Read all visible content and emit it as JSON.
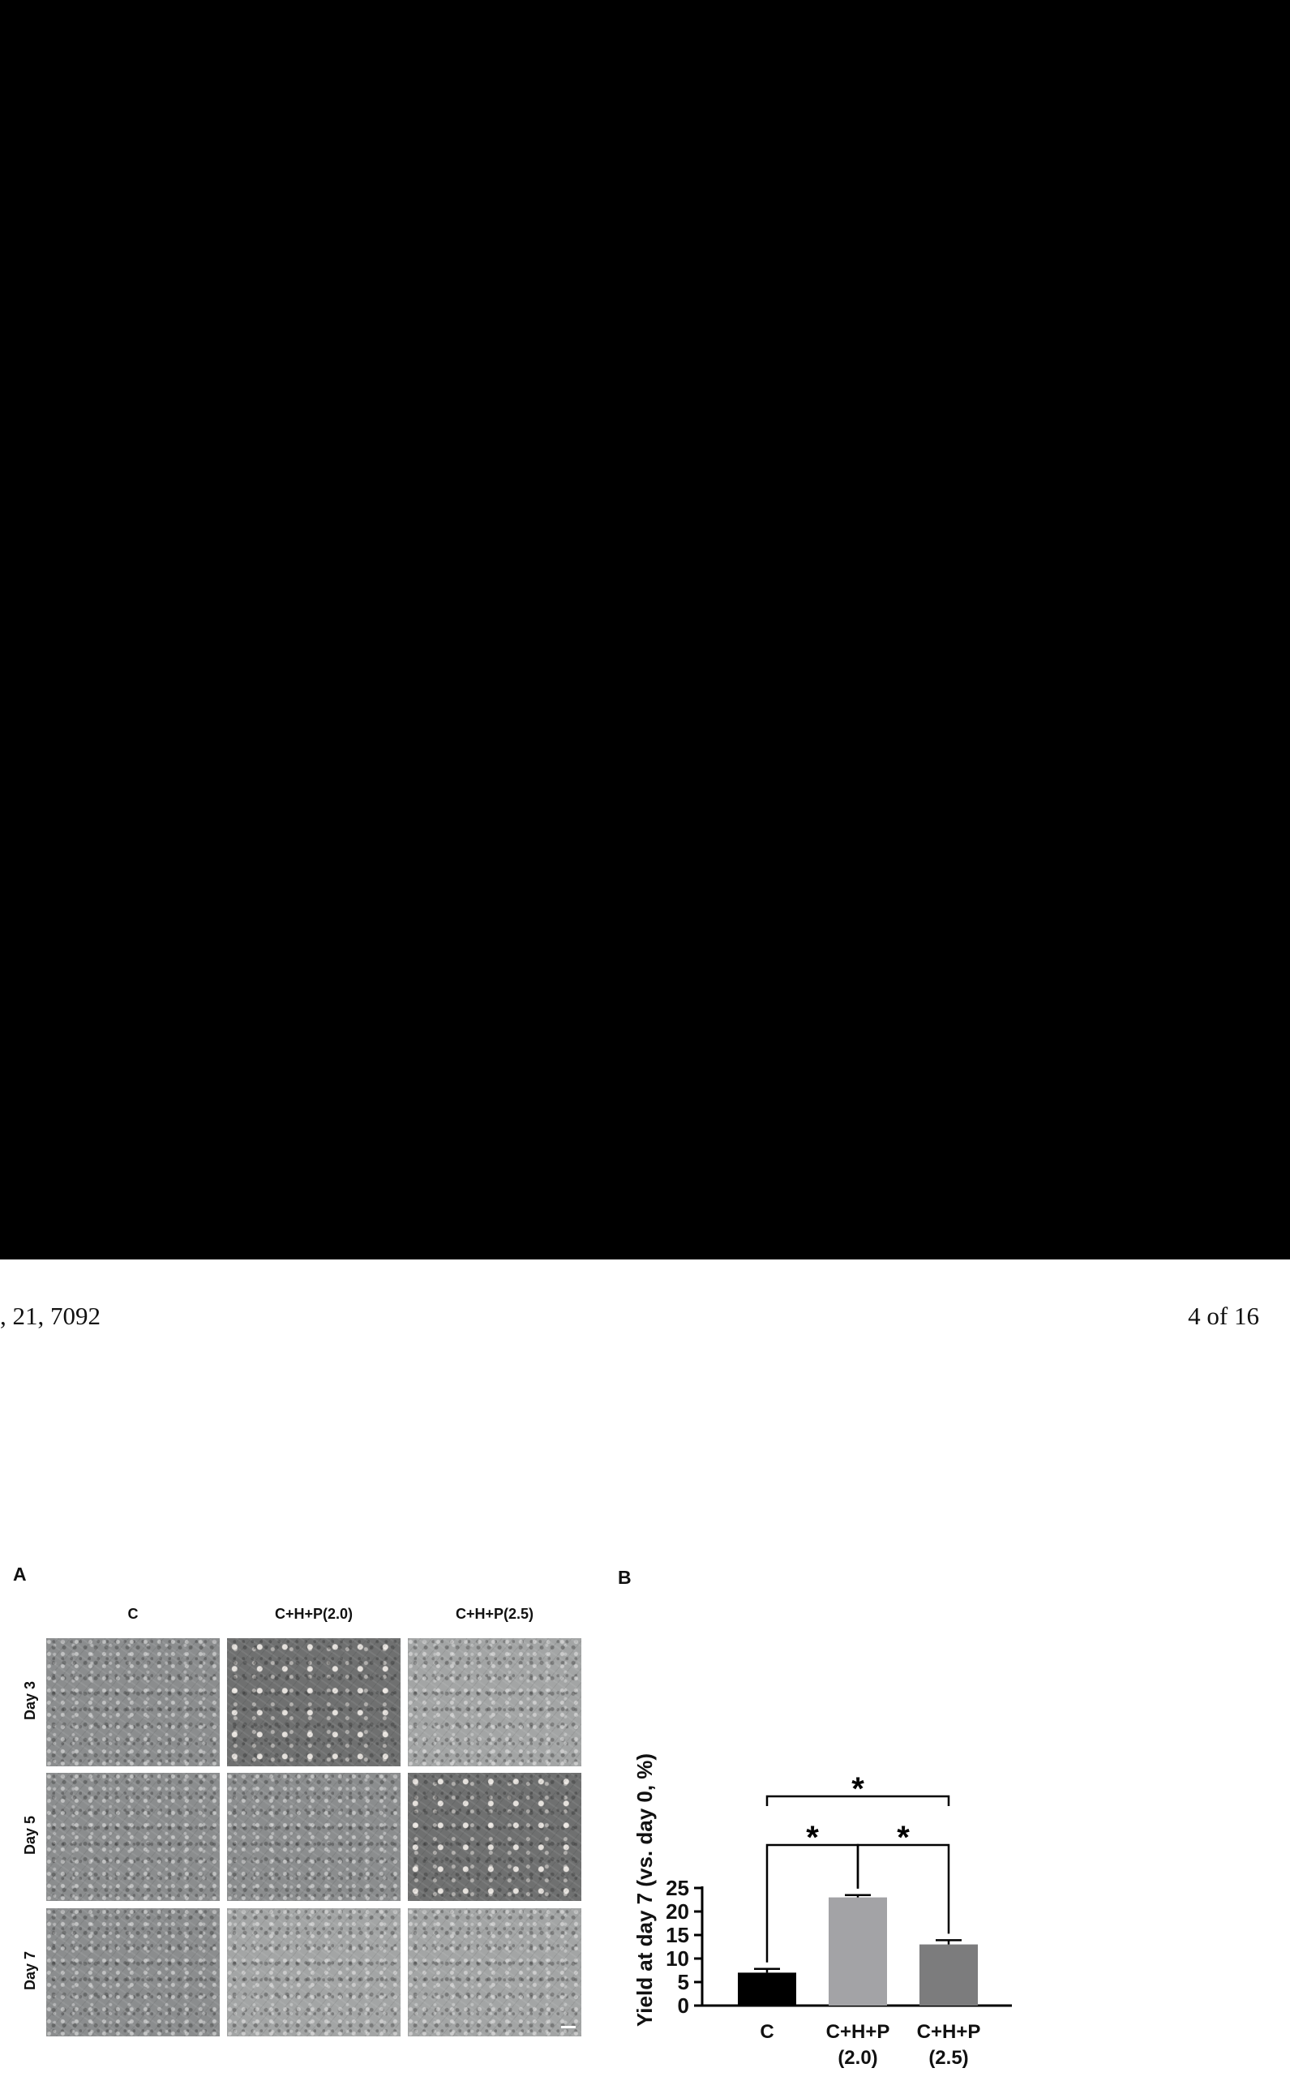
{
  "page": {
    "header_left": ", 21, 7092",
    "header_right": "4 of 16"
  },
  "panel_a": {
    "letter": "A",
    "columns": [
      "C",
      "C+H+P(2.0)",
      "C+H+P(2.5)"
    ],
    "rows": [
      "Day 3",
      "Day 5",
      "Day 7"
    ]
  },
  "panel_b": {
    "letter": "B"
  },
  "chart_data": {
    "type": "bar",
    "categories": [
      "C",
      "C+H+P (2.0)",
      "C+H+P (2.5)"
    ],
    "category_lines": [
      [
        "C"
      ],
      [
        "C+H+P",
        "(2.0)"
      ],
      [
        "C+H+P",
        "(2.5)"
      ]
    ],
    "values": [
      7,
      23,
      13
    ],
    "errors": [
      0.8,
      0.5,
      0.9
    ],
    "bar_colors": [
      "#000000",
      "#a3a3a6",
      "#7c7c7d"
    ],
    "ylabel": "Yield at day 7 (vs. day 0, %)",
    "ylim": [
      0,
      25
    ],
    "yticks": [
      0,
      5,
      10,
      15,
      20,
      25
    ],
    "significance": [
      {
        "from": 0,
        "to": 2,
        "label": "*",
        "level": "top"
      },
      {
        "from": 0,
        "to": 1,
        "label": "*",
        "level": "lower"
      },
      {
        "from": 1,
        "to": 2,
        "label": "*",
        "level": "lower"
      }
    ]
  }
}
